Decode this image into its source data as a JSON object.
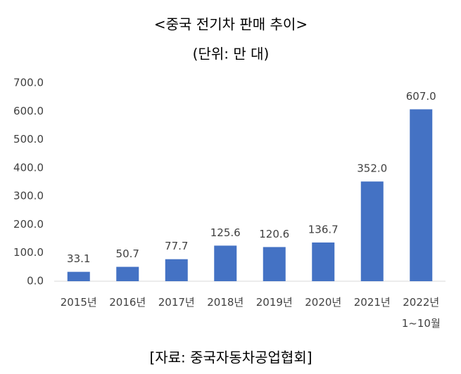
{
  "chart_data": {
    "type": "bar",
    "title": "<중국 전기차 판매 추이>",
    "subtitle": "(단위: 만 대)",
    "categories": [
      "2015년",
      "2016년",
      "2017년",
      "2018년",
      "2019년",
      "2020년",
      "2021년",
      "2022년\n1~10월"
    ],
    "values": [
      33.1,
      50.7,
      77.7,
      125.6,
      120.6,
      136.7,
      352,
      607
    ],
    "value_labels": [
      "33.1",
      "50.7",
      "77.7",
      "125.6",
      "120.6",
      "136.7",
      "352.0",
      "607.0"
    ],
    "color": "#4472c4",
    "ylim": [
      0,
      700
    ],
    "yticks": [
      {
        "value": 0,
        "label": "0.0"
      },
      {
        "value": 100,
        "label": "100.0"
      },
      {
        "value": 200,
        "label": "200.0"
      },
      {
        "value": 300,
        "label": "300.0"
      },
      {
        "value": 400,
        "label": "400.0"
      },
      {
        "value": 500,
        "label": "500.0"
      },
      {
        "value": 600,
        "label": "600.0"
      },
      {
        "value": 700,
        "label": "700.0"
      }
    ],
    "grid": false,
    "source": "[자료: 중국자동차공업협회]"
  }
}
